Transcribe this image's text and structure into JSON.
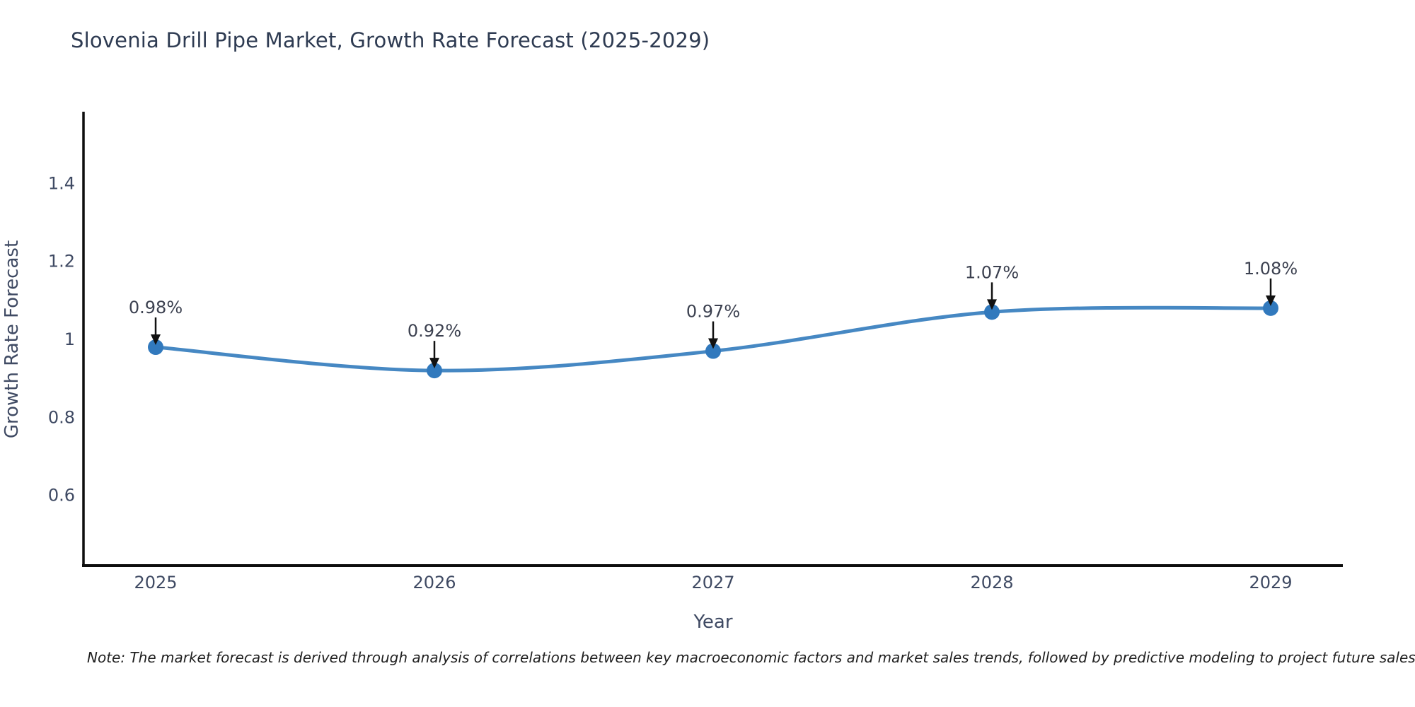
{
  "note": "Note: The market forecast is derived through analysis of correlations between key macroeconomic factors and market sales trends, followed by predictive modeling to project future sales",
  "chart_data": {
    "type": "line",
    "title": "Slovenia Drill Pipe Market, Growth Rate Forecast (2025-2029)",
    "x": [
      "2025",
      "2026",
      "2027",
      "2028",
      "2029"
    ],
    "values": [
      0.98,
      0.92,
      0.97,
      1.07,
      1.08
    ],
    "point_labels": [
      "0.98%",
      "0.92%",
      "0.97%",
      "1.07%",
      "1.08%"
    ],
    "xlabel": "Year",
    "ylabel": "Growth Rate Forecast",
    "yticks": [
      {
        "value": 0.6,
        "label": "0.6"
      },
      {
        "value": 0.8,
        "label": "0.8"
      },
      {
        "value": 1.0,
        "label": "1"
      },
      {
        "value": 1.2,
        "label": "1.2"
      },
      {
        "value": 1.4,
        "label": "1.4"
      }
    ],
    "ylim": [
      0.42,
      1.58
    ],
    "grid": false,
    "legend": "none",
    "line_shape": "spline",
    "colors": {
      "line": "#4688c3",
      "marker": "#3179bd",
      "axis": "#0d0d0d",
      "arrow": "#111111",
      "title_text": "#2e3b52",
      "tick_text": "#3f4a63",
      "annotation_text": "#3c4150",
      "note_text": "#1f1f1f"
    }
  }
}
